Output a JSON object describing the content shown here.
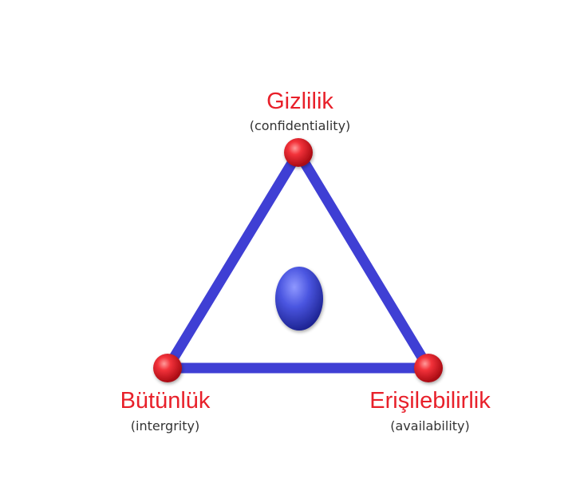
{
  "colors": {
    "edge": "#3f3fd4",
    "vertex": "#e0202a",
    "center": "#4a55e0",
    "label": "#e8202a",
    "sublabel": "#333333"
  },
  "vertices": {
    "top": {
      "label": "Gizlilik",
      "sublabel": "(confidentiality)"
    },
    "left": {
      "label": "Bütünlük",
      "sublabel": "(intergrity)"
    },
    "right": {
      "label": "Erişilebilirlik",
      "sublabel": "(availability)"
    }
  }
}
